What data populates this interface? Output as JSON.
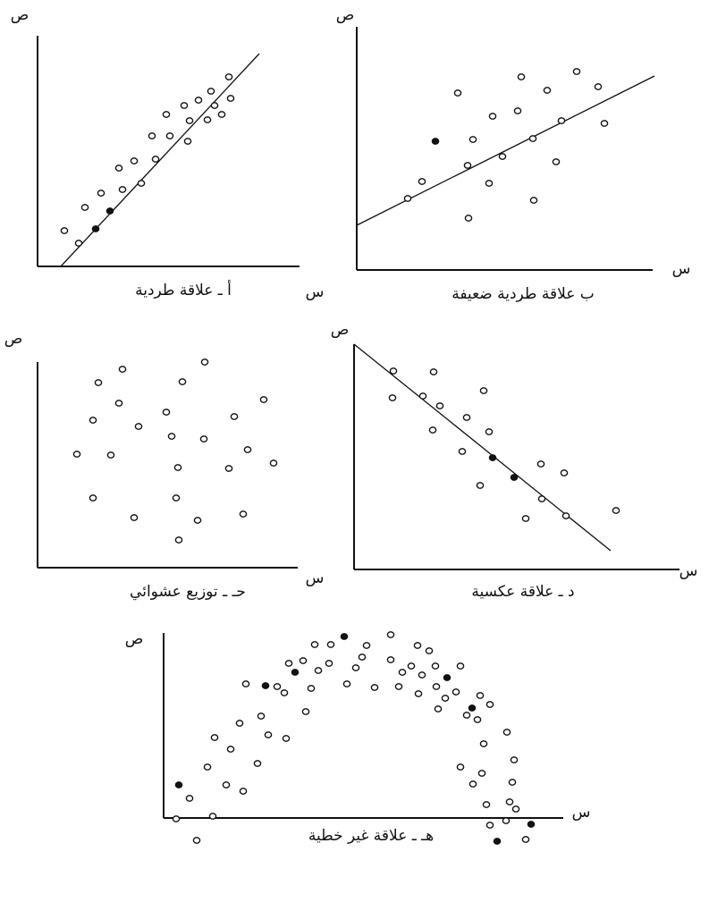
{
  "panels": [
    {
      "y_label": "ص",
      "x_label": "س",
      "caption": "أ ـ علاقة طردية"
    },
    {
      "y_label": "ص",
      "x_label": "س",
      "caption": "ب علاقة طردية ضعيفة"
    },
    {
      "y_label": "ص",
      "x_label": "س",
      "caption": "حـ ـ توزيع عشوائي"
    },
    {
      "y_label": "ص",
      "x_label": "س",
      "caption": "د ـ علاقة عكسية"
    },
    {
      "y_label": "ص",
      "x_label": "س",
      "caption": "هـ ـ علاقة غير خطية"
    }
  ]
}
